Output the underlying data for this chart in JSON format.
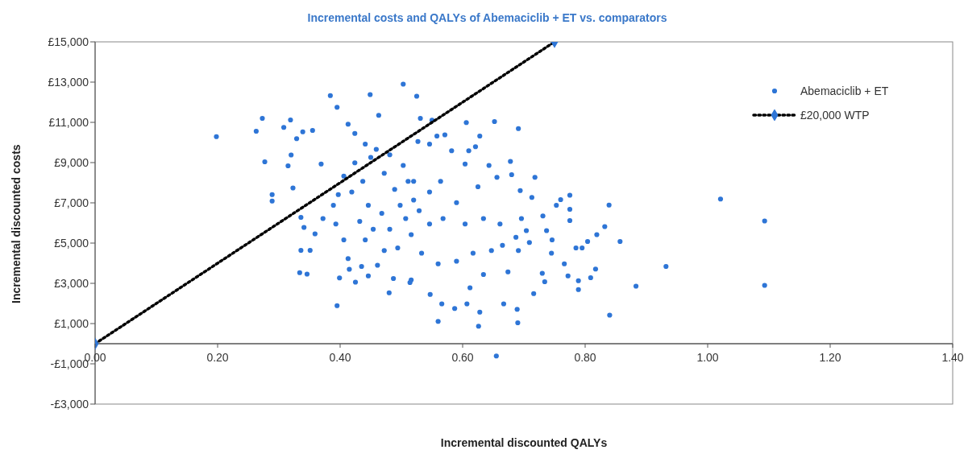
{
  "chart_data": {
    "type": "scatter",
    "title": "Incremental costs and QALYs of Abemaciclib + ET vs. comparators",
    "xlabel": "Incremental discounted QALYs",
    "ylabel": "Incremental discounted costs",
    "xlim": [
      0,
      1.4
    ],
    "xticks": [
      {
        "value": 0,
        "label": "0.00"
      },
      {
        "value": 0.2,
        "label": "0.20"
      },
      {
        "value": 0.4,
        "label": "0.40"
      },
      {
        "value": 0.6,
        "label": "0.60"
      },
      {
        "value": 0.8,
        "label": "0.80"
      },
      {
        "value": 1.0,
        "label": "1.00"
      },
      {
        "value": 1.2,
        "label": "1.20"
      },
      {
        "value": 1.4,
        "label": "1.40"
      }
    ],
    "ylim": [
      -3000,
      15000
    ],
    "yticks": [
      {
        "value": -3000,
        "label": "-£3,000"
      },
      {
        "value": -1000,
        "label": "-£1,000"
      },
      {
        "value": 1000,
        "label": "£1,000"
      },
      {
        "value": 3000,
        "label": "£3,000"
      },
      {
        "value": 5000,
        "label": "£5,000"
      },
      {
        "value": 7000,
        "label": "£7,000"
      },
      {
        "value": 9000,
        "label": "£9,000"
      },
      {
        "value": 11000,
        "label": "£11,000"
      },
      {
        "value": 13000,
        "label": "£13,000"
      },
      {
        "value": 15000,
        "label": "£15,000"
      }
    ],
    "grid": false,
    "legend": "top right",
    "series": [
      {
        "name": "Abemaciclib + ET",
        "type": "scatter",
        "color": "#2e75d6",
        "marker": "circle",
        "x": [
          0.198,
          0.263,
          0.273,
          0.277,
          0.319,
          0.308,
          0.289,
          0.289,
          0.334,
          0.346,
          0.336,
          0.351,
          0.384,
          0.395,
          0.395,
          0.399,
          0.449,
          0.503,
          0.463,
          0.48,
          0.425,
          0.413,
          0.339,
          0.355,
          0.329,
          0.32,
          0.315,
          0.323,
          0.336,
          0.341,
          0.359,
          0.369,
          0.372,
          0.389,
          0.393,
          0.406,
          0.413,
          0.415,
          0.435,
          0.446,
          0.461,
          0.472,
          0.494,
          0.514,
          0.487,
          0.419,
          0.437,
          0.45,
          0.459,
          0.481,
          0.503,
          0.511,
          0.498,
          0.468,
          0.446,
          0.432,
          0.454,
          0.481,
          0.507,
          0.52,
          0.441,
          0.472,
          0.406,
          0.397,
          0.489,
          0.424,
          0.441,
          0.424,
          0.525,
          0.531,
          0.55,
          0.606,
          0.652,
          0.691,
          1.021,
          0.839,
          0.932,
          0.883,
          0.84,
          0.857,
          0.832,
          0.819,
          0.804,
          0.817,
          0.809,
          0.789,
          0.789,
          0.785,
          0.795,
          0.775,
          0.775,
          0.775,
          0.76,
          0.766,
          0.772,
          0.69,
          0.689,
          0.655,
          0.626,
          0.628,
          0.56,
          0.587,
          0.566,
          0.607,
          0.667,
          0.547,
          0.716,
          0.734,
          0.73,
          0.745,
          0.746,
          0.731,
          0.737,
          0.718,
          0.694,
          0.678,
          0.68,
          0.656,
          0.643,
          0.628,
          0.621,
          0.61,
          0.604,
          0.582,
          0.571,
          0.558,
          0.546,
          0.527,
          0.625,
          0.59,
          0.568,
          0.546,
          0.529,
          0.516,
          0.604,
          0.634,
          0.661,
          0.696,
          0.704,
          0.687,
          0.665,
          0.647,
          0.617,
          0.59,
          0.56,
          0.533,
          0.516,
          0.634,
          0.674,
          0.691,
          0.612,
          0.709,
          0.564,
          0.546,
          0.52,
          0.713,
          0.753,
          1.093,
          1.093
        ],
        "values": [
          10290,
          10560,
          11200,
          9040,
          11120,
          10750,
          7410,
          7090,
          3530,
          3460,
          4640,
          4640,
          12330,
          11750,
          1890,
          3270,
          12380,
          12900,
          11350,
          2530,
          3060,
          10910,
          10530,
          10600,
          10190,
          9380,
          8840,
          7740,
          6280,
          5780,
          5460,
          8930,
          6220,
          6880,
          5950,
          5160,
          4230,
          3700,
          3840,
          3370,
          3900,
          4630,
          4760,
          3040,
          3240,
          7540,
          8070,
          9260,
          9660,
          9390,
          8860,
          8070,
          6880,
          6480,
          6880,
          6080,
          5690,
          5690,
          6220,
          7140,
          5160,
          8470,
          8330,
          7410,
          7670,
          8990,
          9920,
          10450,
          12300,
          11200,
          11110,
          10990,
          11040,
          10690,
          7190,
          6890,
          3840,
          2860,
          1420,
          5080,
          5820,
          5420,
          5080,
          3710,
          3280,
          2690,
          3130,
          4760,
          4760,
          7380,
          6680,
          6120,
          7160,
          3970,
          3370,
          1040,
          1710,
          -610,
          870,
          1570,
          1110,
          1750,
          1980,
          1980,
          1980,
          2450,
          2490,
          3080,
          3500,
          4500,
          5160,
          6350,
          5620,
          8270,
          7610,
          9060,
          8400,
          8270,
          8860,
          10320,
          9790,
          9590,
          8930,
          9590,
          10380,
          10320,
          9920,
          10050,
          7800,
          7010,
          6220,
          5950,
          6610,
          5420,
          5950,
          6220,
          5950,
          6220,
          5620,
          5290,
          4890,
          4630,
          4500,
          4100,
          3970,
          4500,
          3170,
          3440,
          3570,
          4630,
          2780,
          5030,
          8070,
          7540,
          8070,
          7270,
          6880,
          6100,
          2900
        ]
      },
      {
        "name": "£20,000 WTP",
        "type": "line",
        "color": "#000000",
        "colors": [
          "#2e75d6",
          "#2e75d6"
        ],
        "marker": "diamond",
        "line_style": "dotted",
        "x": [
          0,
          0.75
        ],
        "values": [
          0,
          15000
        ]
      }
    ]
  }
}
